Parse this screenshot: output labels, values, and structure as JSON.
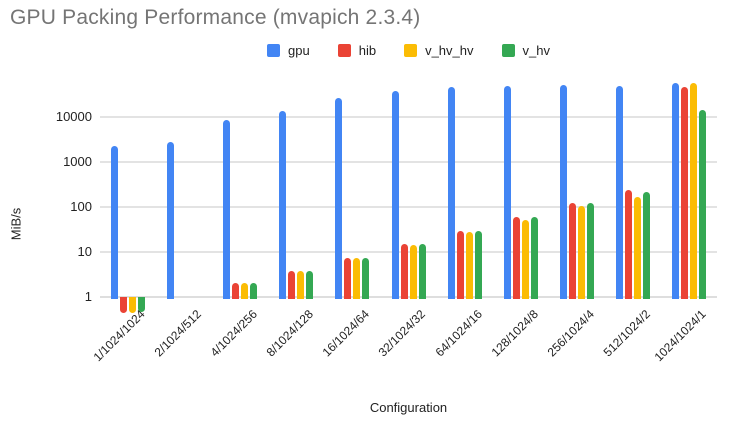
{
  "title": "GPU Packing Performance (mvapich 2.3.4)",
  "colors": {
    "title_text": "#757575",
    "axis_text": "#222222",
    "gridline": "#e3e3e3",
    "background": "#ffffff"
  },
  "chart_data": {
    "type": "bar",
    "title": "GPU Packing Performance (mvapich 2.3.4)",
    "xlabel": "Configuration",
    "ylabel": "MiB/s",
    "y_scale": "log",
    "ylim": [
      1,
      100000
    ],
    "y_ticks": [
      1,
      10,
      100,
      1000,
      10000
    ],
    "grid": true,
    "legend_position": "top-center",
    "categories": [
      "1/1024/1024",
      "2/1024/512",
      "4/1024/256",
      "8/1024/128",
      "16/1024/64",
      "32/1024/32",
      "64/1024/16",
      "128/1024/8",
      "256/1024/4",
      "512/1024/2",
      "1024/1024/1"
    ],
    "series": [
      {
        "name": "gpu",
        "color": "#4285F4",
        "values": [
          2250,
          2750,
          8500,
          13500,
          26000,
          38000,
          46000,
          49000,
          51000,
          48000,
          56000
        ]
      },
      {
        "name": "hib",
        "color": "#EA4335",
        "values": [
          0.45,
          null,
          2.0,
          3.7,
          7.3,
          15,
          30,
          60,
          120,
          240,
          46000
        ]
      },
      {
        "name": "v_hv_hv",
        "color": "#FBBC04",
        "values": [
          0.45,
          null,
          2.0,
          3.7,
          7.2,
          14,
          28,
          52,
          105,
          165,
          57000
        ]
      },
      {
        "name": "v_hv",
        "color": "#34A853",
        "values": [
          0.47,
          null,
          2.0,
          3.8,
          7.3,
          15,
          30,
          60,
          125,
          220,
          14500
        ]
      }
    ]
  }
}
